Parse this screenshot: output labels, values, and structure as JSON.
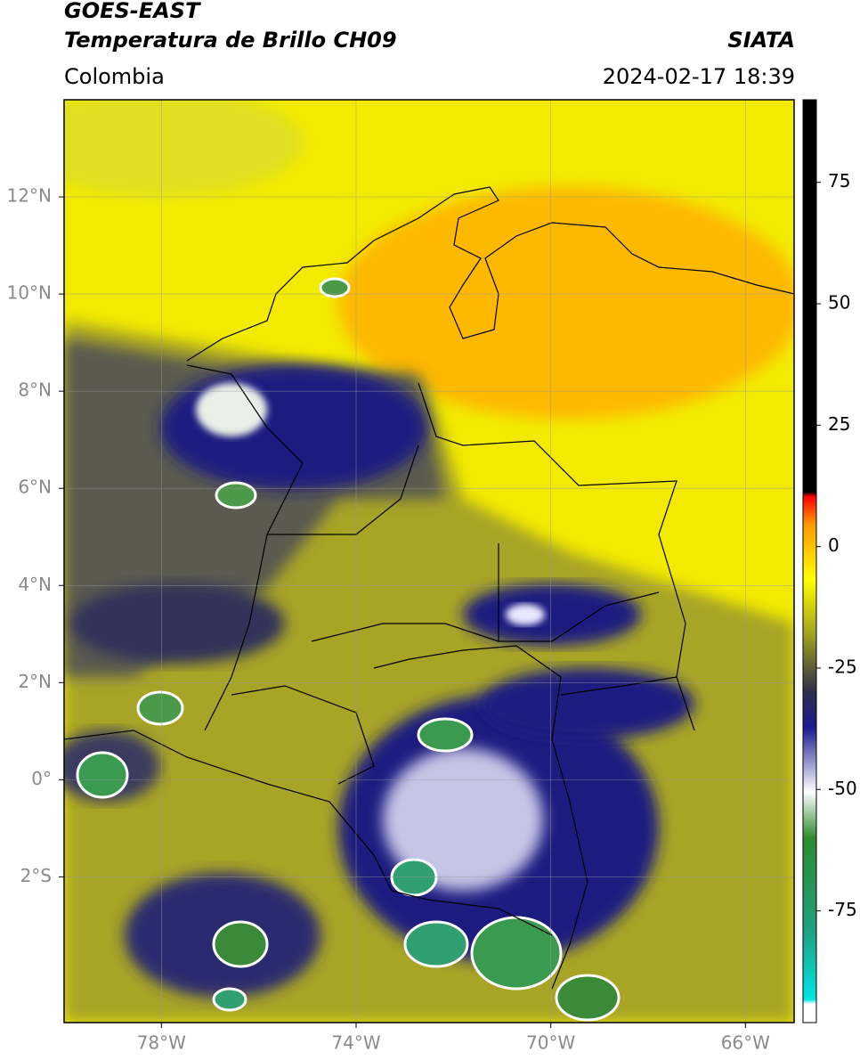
{
  "header": {
    "title": "GOES-EAST",
    "subtitle": "Temperatura de Brillo CH09",
    "source": "SIATA",
    "region": "Colombia",
    "datetime": "2024-02-17 18:39"
  },
  "map": {
    "xlim": [
      -80,
      -65
    ],
    "ylim": [
      -5,
      14
    ],
    "xticks": [
      {
        "value": -78,
        "label": "78°W"
      },
      {
        "value": -74,
        "label": "74°W"
      },
      {
        "value": -70,
        "label": "70°W"
      },
      {
        "value": -66,
        "label": "66°W"
      }
    ],
    "yticks": [
      {
        "value": 12,
        "label": "12°N"
      },
      {
        "value": 10,
        "label": "10°N"
      },
      {
        "value": 8,
        "label": "8°N"
      },
      {
        "value": 6,
        "label": "6°N"
      },
      {
        "value": 4,
        "label": "4°N"
      },
      {
        "value": 2,
        "label": "2°N"
      },
      {
        "value": 0,
        "label": "0°"
      },
      {
        "value": -2,
        "label": "2°S"
      }
    ]
  },
  "colorbar": {
    "lim": [
      -98,
      92
    ],
    "ticks": [
      75,
      50,
      25,
      0,
      -25,
      -50,
      -75
    ]
  }
}
